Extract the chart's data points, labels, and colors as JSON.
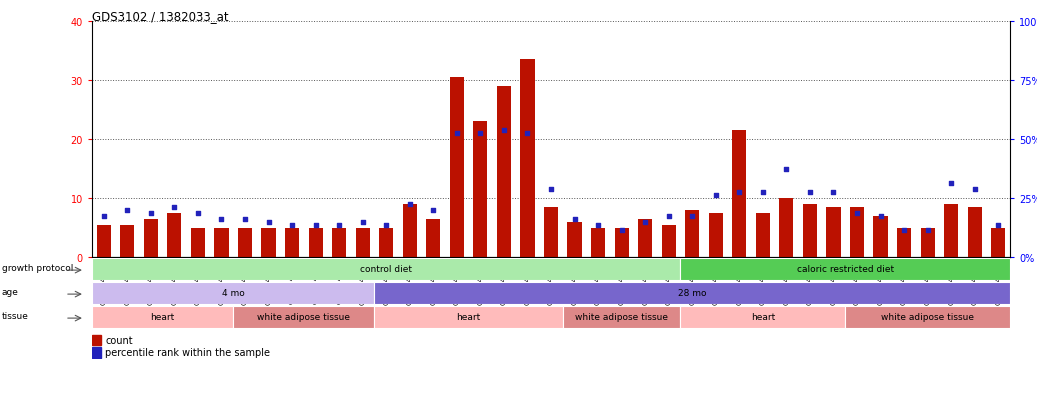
{
  "title": "GDS3102 / 1382033_at",
  "samples": [
    "GSM154903",
    "GSM154904",
    "GSM154905",
    "GSM154906",
    "GSM154907",
    "GSM154908",
    "GSM154920",
    "GSM154921",
    "GSM154922",
    "GSM154924",
    "GSM154925",
    "GSM154932",
    "GSM154933",
    "GSM154896",
    "GSM154897",
    "GSM154898",
    "GSM154899",
    "GSM154900",
    "GSM154901",
    "GSM154902",
    "GSM154918",
    "GSM154919",
    "GSM154929",
    "GSM154930",
    "GSM154931",
    "GSM154909",
    "GSM154910",
    "GSM154911",
    "GSM154912",
    "GSM154913",
    "GSM154914",
    "GSM154915",
    "GSM154916",
    "GSM154917",
    "GSM154923",
    "GSM154926",
    "GSM154927",
    "GSM154928",
    "GSM154934"
  ],
  "count_values": [
    5.5,
    5.5,
    6.5,
    7.5,
    5.0,
    5.0,
    5.0,
    5.0,
    5.0,
    5.0,
    5.0,
    5.0,
    5.0,
    9.0,
    6.5,
    30.5,
    23.0,
    29.0,
    33.5,
    8.5,
    6.0,
    5.0,
    5.0,
    6.5,
    5.5,
    8.0,
    7.5,
    21.5,
    7.5,
    10.0,
    9.0,
    8.5,
    8.5,
    7.0,
    5.0,
    5.0,
    9.0,
    8.5,
    5.0
  ],
  "percentile_values": [
    7.0,
    8.0,
    7.5,
    8.5,
    7.5,
    6.5,
    6.5,
    6.0,
    5.5,
    5.5,
    5.5,
    6.0,
    5.5,
    9.0,
    8.0,
    21.0,
    21.0,
    21.5,
    21.0,
    11.5,
    6.5,
    5.5,
    4.5,
    6.0,
    7.0,
    7.0,
    10.5,
    11.0,
    11.0,
    15.0,
    11.0,
    11.0,
    7.5,
    7.0,
    4.5,
    4.5,
    12.5,
    11.5,
    5.5
  ],
  "ylim_left": [
    0,
    40
  ],
  "ylim_right": [
    0,
    100
  ],
  "yticks_left": [
    0,
    10,
    20,
    30,
    40
  ],
  "yticks_right": [
    0,
    25,
    50,
    75,
    100
  ],
  "bar_color": "#BB1100",
  "dot_color": "#2222BB",
  "growth_protocol": {
    "label": "growth protocol",
    "segments": [
      {
        "text": "control diet",
        "start": 0,
        "end": 25,
        "color": "#AAEAAA"
      },
      {
        "text": "caloric restricted diet",
        "start": 25,
        "end": 39,
        "color": "#55CC55"
      }
    ]
  },
  "age": {
    "label": "age",
    "segments": [
      {
        "text": "4 mo",
        "start": 0,
        "end": 12,
        "color": "#CCBBEE"
      },
      {
        "text": "28 mo",
        "start": 12,
        "end": 39,
        "color": "#7766CC"
      }
    ]
  },
  "tissue": {
    "label": "tissue",
    "segments": [
      {
        "text": "heart",
        "start": 0,
        "end": 6,
        "color": "#FFBBBB"
      },
      {
        "text": "white adipose tissue",
        "start": 6,
        "end": 12,
        "color": "#DD8888"
      },
      {
        "text": "heart",
        "start": 12,
        "end": 20,
        "color": "#FFBBBB"
      },
      {
        "text": "white adipose tissue",
        "start": 20,
        "end": 25,
        "color": "#DD8888"
      },
      {
        "text": "heart",
        "start": 25,
        "end": 32,
        "color": "#FFBBBB"
      },
      {
        "text": "white adipose tissue",
        "start": 32,
        "end": 39,
        "color": "#DD8888"
      }
    ]
  },
  "legend": [
    {
      "label": "count",
      "color": "#BB1100"
    },
    {
      "label": "percentile rank within the sample",
      "color": "#2222BB"
    }
  ]
}
